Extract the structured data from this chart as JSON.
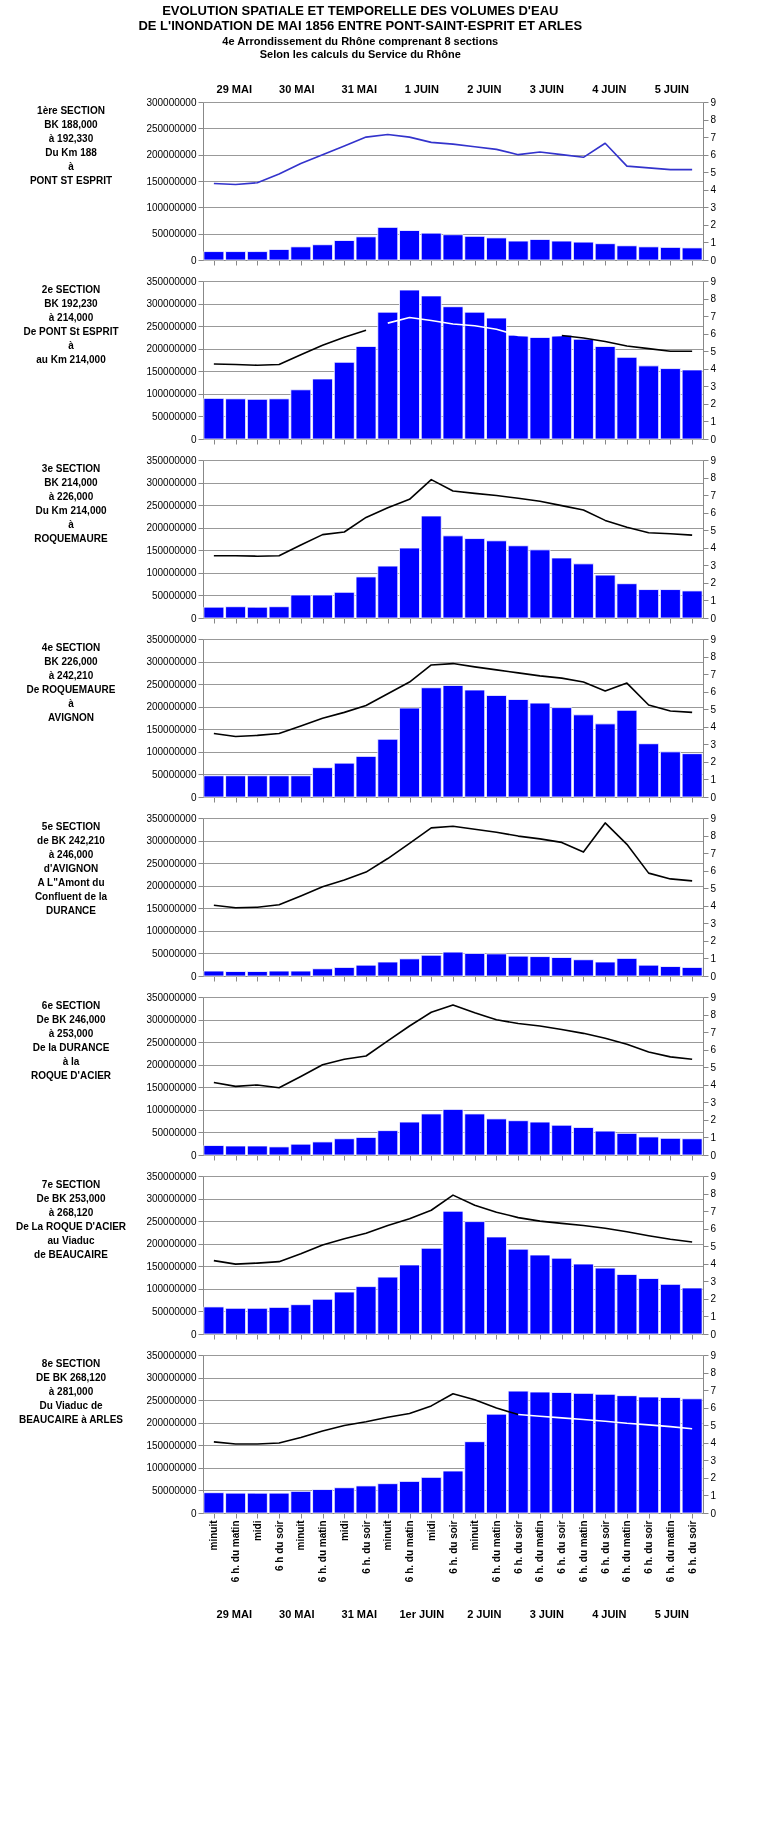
{
  "chart_data": [
    {
      "type": "bar",
      "title": "EVOLUTION SPATIALE ET TEMPORELLE DES VOLUMES D'EAU\nDE L'INONDATION DE MAI 1856 ENTRE PONT-SAINT-ESPRIT ET ARLES",
      "subtitle": "4e Arrondissement du Rhône comprenant 8 sections\nSelon les calculs du Service du Rhône",
      "ylabel": "1ère SECTION\n\nBK 188,000\nà 192,330\n\nDu Km 188\nà\nPONT ST ESPRIT",
      "annotations": [
        "29 MAI",
        "30 MAI",
        "31 MAI",
        "1 JUIN",
        "2 JUIN",
        "3 JUIN",
        "4 JUIN",
        "5 JUIN"
      ],
      "categories": [
        null,
        null,
        null,
        null,
        null,
        null,
        null,
        null,
        null,
        null,
        null,
        null,
        null,
        null,
        null,
        null,
        null,
        null,
        null,
        null,
        null,
        null,
        null
      ],
      "series": [
        {
          "type": "bar",
          "color": "#0000ff",
          "values": [
            16000000,
            16000000,
            16000000,
            20000000,
            25000000,
            29000000,
            37000000,
            44000000,
            62000000,
            56000000,
            51000000,
            48000000,
            45000000,
            42000000,
            36000000,
            39000000,
            36000000,
            34000000,
            31000000,
            27000000,
            25000000,
            24000000,
            23000000
          ]
        },
        {
          "type": "line",
          "axis": "y2",
          "color": "#3333cc",
          "values": [
            4.36,
            4.3,
            4.4,
            4.9,
            5.5,
            6.0,
            6.5,
            7.0,
            7.15,
            7.0,
            6.7,
            6.6,
            6.45,
            6.3,
            6.0,
            6.15,
            6.0,
            5.85,
            6.65,
            5.35,
            5.25,
            5.15,
            5.15
          ]
        }
      ],
      "ylim": [
        0,
        300000000
      ],
      "yticks": [
        0,
        50000000,
        100000000,
        150000000,
        200000000,
        250000000,
        300000000
      ],
      "y2lim": [
        0,
        9
      ],
      "y2ticks": [
        0,
        1,
        2,
        3,
        4,
        5,
        6,
        7,
        8,
        9
      ],
      "grid": "y",
      "tick_labels": "y"
    },
    {
      "type": "bar",
      "ylabel": "2e SECTION\nBK 192,230\nà 214,000\n\nDe PONT St ESPRIT\nà\nau Km 214,000",
      "categories": [
        null,
        null,
        null,
        null,
        null,
        null,
        null,
        null,
        null,
        null,
        null,
        null,
        null,
        null,
        null,
        null,
        null,
        null,
        null,
        null,
        null,
        null,
        null
      ],
      "series": [
        {
          "type": "bar",
          "color": "#0000ff",
          "values": [
            90000000,
            89000000,
            88000000,
            89000000,
            109000000,
            133000000,
            170000000,
            205000000,
            281000000,
            330000000,
            317000000,
            293000000,
            281000000,
            268000000,
            230000000,
            225000000,
            230000000,
            221000000,
            205000000,
            181000000,
            162000000,
            156000000,
            153000000
          ]
        },
        {
          "type": "line",
          "axis": "y2",
          "color": "#000000",
          "values": [
            4.27,
            4.24,
            4.2,
            4.24,
            4.8,
            5.34,
            5.8,
            6.2,
            null,
            null,
            null,
            null,
            null,
            null,
            null,
            null,
            5.9,
            5.75,
            5.55,
            5.3,
            5.15,
            5.0,
            5.0
          ]
        },
        {
          "type": "line",
          "axis": "y2",
          "color": "#ffffff",
          "values": [
            null,
            null,
            null,
            null,
            null,
            null,
            null,
            null,
            6.6,
            6.92,
            6.75,
            6.55,
            6.45,
            6.25,
            5.9,
            5.85,
            5.9,
            null,
            null,
            null,
            null,
            null,
            null
          ]
        }
      ],
      "ylim": [
        0,
        350000000
      ],
      "yticks": [
        0,
        50000000,
        100000000,
        150000000,
        200000000,
        250000000,
        300000000,
        350000000
      ],
      "y2lim": [
        0,
        9
      ],
      "y2ticks": [
        0,
        1,
        2,
        3,
        4,
        5,
        6,
        7,
        8,
        9
      ],
      "grid": "y",
      "tick_labels": "y"
    },
    {
      "type": "bar",
      "ylabel": "3e SECTION\nBK 214,000\nà 226,000\n\nDu Km 214,000\nà\nROQUEMAURE",
      "categories": [
        null,
        null,
        null,
        null,
        null,
        null,
        null,
        null,
        null,
        null,
        null,
        null,
        null,
        null,
        null,
        null,
        null,
        null,
        null,
        null,
        null,
        null,
        null
      ],
      "series": [
        {
          "type": "bar",
          "color": "#0000ff",
          "values": [
            24000000,
            25000000,
            24000000,
            25000000,
            51000000,
            51000000,
            57000000,
            91000000,
            115000000,
            155000000,
            226000000,
            182000000,
            176000000,
            171000000,
            160000000,
            151000000,
            133000000,
            120000000,
            95000000,
            76000000,
            63000000,
            63000000,
            60000000
          ]
        },
        {
          "type": "line",
          "axis": "y2",
          "color": "#000000",
          "values": [
            3.55,
            3.55,
            3.52,
            3.55,
            4.16,
            4.75,
            4.9,
            5.73,
            6.28,
            6.76,
            7.88,
            7.23,
            7.1,
            6.98,
            6.82,
            6.65,
            6.4,
            6.15,
            5.56,
            5.17,
            4.86,
            4.8,
            4.72
          ]
        }
      ],
      "ylim": [
        0,
        350000000
      ],
      "yticks": [
        0,
        50000000,
        100000000,
        150000000,
        200000000,
        250000000,
        300000000,
        350000000
      ],
      "y2lim": [
        0,
        9
      ],
      "y2ticks": [
        0,
        1,
        2,
        3,
        4,
        5,
        6,
        7,
        8,
        9
      ],
      "grid": "y",
      "tick_labels": "y"
    },
    {
      "type": "bar",
      "ylabel": "4e SECTION\nBK 226,000\nà  242,210\n\nDe ROQUEMAURE\nà\nAVIGNON",
      "categories": [
        null,
        null,
        null,
        null,
        null,
        null,
        null,
        null,
        null,
        null,
        null,
        null,
        null,
        null,
        null,
        null,
        null,
        null,
        null,
        null,
        null,
        null,
        null
      ],
      "series": [
        {
          "type": "bar",
          "color": "#0000ff",
          "values": [
            47000000,
            47000000,
            47000000,
            47000000,
            47000000,
            65000000,
            75000000,
            90000000,
            128000000,
            197000000,
            242000000,
            247000000,
            237000000,
            225000000,
            216000000,
            208000000,
            198000000,
            182000000,
            162000000,
            192000000,
            118000000,
            100000000,
            96000000
          ]
        },
        {
          "type": "line",
          "axis": "y2",
          "color": "#000000",
          "values": [
            3.62,
            3.45,
            3.51,
            3.62,
            4.04,
            4.48,
            4.82,
            5.21,
            5.88,
            6.55,
            7.52,
            7.6,
            7.41,
            7.24,
            7.07,
            6.9,
            6.77,
            6.55,
            6.04,
            6.49,
            5.24,
            4.9,
            4.82
          ]
        }
      ],
      "ylim": [
        0,
        350000000
      ],
      "yticks": [
        0,
        50000000,
        100000000,
        150000000,
        200000000,
        250000000,
        300000000,
        350000000
      ],
      "y2lim": [
        0,
        9
      ],
      "y2ticks": [
        0,
        1,
        2,
        3,
        4,
        5,
        6,
        7,
        8,
        9
      ],
      "grid": "y",
      "tick_labels": "y"
    },
    {
      "type": "bar",
      "ylabel": "5e SECTION\nde BK 242,210\nà 246,000\n\nd'AVIGNON\nA L\"Amont du\nConfluent de la\nDURANCE",
      "categories": [
        null,
        null,
        null,
        null,
        null,
        null,
        null,
        null,
        null,
        null,
        null,
        null,
        null,
        null,
        null,
        null,
        null,
        null,
        null,
        null,
        null,
        null,
        null
      ],
      "series": [
        {
          "type": "bar",
          "color": "#0000ff",
          "values": [
            11000000,
            10000000,
            10000000,
            11000000,
            11000000,
            16000000,
            19000000,
            24000000,
            31000000,
            38000000,
            46000000,
            53000000,
            50000000,
            49000000,
            44000000,
            43000000,
            41000000,
            36000000,
            31000000,
            39000000,
            24000000,
            21000000,
            19000000
          ]
        },
        {
          "type": "line",
          "axis": "y2",
          "color": "#000000",
          "values": [
            4.03,
            3.89,
            3.92,
            4.06,
            4.56,
            5.08,
            5.47,
            5.92,
            6.69,
            7.56,
            8.44,
            8.53,
            8.36,
            8.19,
            7.97,
            7.81,
            7.61,
            7.06,
            8.72,
            7.5,
            5.86,
            5.53,
            5.42
          ]
        }
      ],
      "ylim": [
        0,
        350000000
      ],
      "yticks": [
        0,
        50000000,
        100000000,
        150000000,
        200000000,
        250000000,
        300000000,
        350000000
      ],
      "y2lim": [
        0,
        9
      ],
      "y2ticks": [
        0,
        1,
        2,
        3,
        4,
        5,
        6,
        7,
        8,
        9
      ],
      "grid": "y",
      "tick_labels": "y"
    },
    {
      "type": "bar",
      "ylabel": "6e SECTION\nDe BK 246,000\nà 253,000\nDe la DURANCE\nà la\nROQUE D'ACIER",
      "categories": [
        null,
        null,
        null,
        null,
        null,
        null,
        null,
        null,
        null,
        null,
        null,
        null,
        null,
        null,
        null,
        null,
        null,
        null,
        null,
        null,
        null,
        null,
        null
      ],
      "series": [
        {
          "type": "bar",
          "color": "#0000ff",
          "values": [
            21000000,
            20000000,
            20000000,
            18000000,
            24000000,
            29000000,
            36000000,
            39000000,
            54000000,
            73000000,
            91000000,
            101000000,
            91000000,
            80000000,
            76000000,
            73000000,
            66000000,
            61000000,
            53000000,
            48000000,
            40000000,
            37000000,
            36000000
          ]
        },
        {
          "type": "line",
          "axis": "y2",
          "color": "#000000",
          "values": [
            4.13,
            3.91,
            3.99,
            3.83,
            4.47,
            5.14,
            5.45,
            5.64,
            6.5,
            7.35,
            8.13,
            8.55,
            8.1,
            7.7,
            7.49,
            7.35,
            7.15,
            6.93,
            6.65,
            6.31,
            5.87,
            5.59,
            5.45
          ]
        }
      ],
      "ylim": [
        0,
        350000000
      ],
      "yticks": [
        0,
        50000000,
        100000000,
        150000000,
        200000000,
        250000000,
        300000000,
        350000000
      ],
      "y2lim": [
        0,
        9
      ],
      "y2ticks": [
        0,
        1,
        2,
        3,
        4,
        5,
        6,
        7,
        8,
        9
      ],
      "grid": "y",
      "tick_labels": "y"
    },
    {
      "type": "bar",
      "ylabel": "7e SECTION\nDe BK 253,000\nà 268,120\nDe La ROQUE D'ACIER\nau Viaduc\nde BEAUCAIRE",
      "categories": [
        null,
        null,
        null,
        null,
        null,
        null,
        null,
        null,
        null,
        null,
        null,
        null,
        null,
        null,
        null,
        null,
        null,
        null,
        null,
        null,
        null,
        null,
        null
      ],
      "series": [
        {
          "type": "bar",
          "color": "#0000ff",
          "values": [
            60000000,
            57000000,
            57000000,
            59000000,
            65000000,
            77000000,
            93000000,
            105000000,
            126000000,
            153000000,
            190000000,
            272000000,
            249000000,
            215000000,
            188000000,
            175000000,
            168000000,
            155000000,
            146000000,
            132000000,
            123000000,
            110000000,
            102000000
          ]
        },
        {
          "type": "line",
          "axis": "y2",
          "color": "#000000",
          "values": [
            4.18,
            3.98,
            4.04,
            4.12,
            4.57,
            5.07,
            5.43,
            5.74,
            6.18,
            6.57,
            7.05,
            7.91,
            7.33,
            6.94,
            6.63,
            6.43,
            6.3,
            6.18,
            6.02,
            5.82,
            5.6,
            5.4,
            5.24
          ]
        }
      ],
      "ylim": [
        0,
        350000000
      ],
      "yticks": [
        0,
        50000000,
        100000000,
        150000000,
        200000000,
        250000000,
        300000000,
        350000000
      ],
      "y2lim": [
        0,
        9
      ],
      "y2ticks": [
        0,
        1,
        2,
        3,
        4,
        5,
        6,
        7,
        8,
        9
      ],
      "grid": "y",
      "tick_labels": "y"
    },
    {
      "type": "bar",
      "ylabel": "8e SECTION\nDE BK 268,120\nà 281,000\nDu Viaduc de\nBEAUCAIRE à ARLES",
      "categories": [
        "minuit",
        "6 h. du matin",
        "midi",
        "6 h du soir",
        "minuit",
        "6 h. du matin",
        "midi",
        "6 h. du soir",
        "minuit",
        "6 h. du matin",
        "midi",
        "6 h. du soir",
        "minuit",
        "6 h. du matin",
        "6 h. du soir",
        "6 h. du matin",
        "6 h. du soir",
        "6 h. du matin",
        "6 h. du soir",
        "6 h. du matin",
        "6 h. du soir",
        "6 h. du matin",
        "6 h. du soir"
      ],
      "series": [
        {
          "type": "bar",
          "color": "#0000ff",
          "values": [
            45000000,
            44000000,
            44000000,
            44000000,
            48000000,
            52000000,
            56000000,
            60000000,
            65000000,
            70000000,
            79000000,
            93000000,
            158000000,
            219000000,
            270000000,
            268000000,
            267000000,
            265000000,
            263000000,
            260000000,
            257000000,
            256000000,
            253000000
          ]
        },
        {
          "type": "line",
          "axis": "y2",
          "color": "#000000",
          "values": [
            4.05,
            3.93,
            3.93,
            3.99,
            4.3,
            4.67,
            4.98,
            5.2,
            5.45,
            5.67,
            6.1,
            6.79,
            6.45,
            5.98,
            5.61,
            null,
            null,
            null,
            null,
            null,
            null,
            null,
            null
          ]
        },
        {
          "type": "line",
          "axis": "y2",
          "color": "#ffffff",
          "values": [
            null,
            null,
            null,
            null,
            null,
            null,
            null,
            null,
            null,
            null,
            null,
            null,
            null,
            null,
            5.61,
            5.51,
            5.42,
            5.33,
            5.23,
            5.11,
            5.02,
            4.92,
            4.8
          ]
        }
      ],
      "ylim": [
        0,
        350000000
      ],
      "yticks": [
        0,
        50000000,
        100000000,
        150000000,
        200000000,
        250000000,
        300000000,
        350000000
      ],
      "y2lim": [
        0,
        9
      ],
      "y2ticks": [
        0,
        1,
        2,
        3,
        4,
        5,
        6,
        7,
        8,
        9
      ],
      "grid": "y",
      "annotations": [
        "29 MAI",
        "30 MAI",
        "31 MAI",
        "1er JUIN",
        "2 JUIN",
        "3 JUIN",
        "4 JUIN",
        "5 JUIN"
      ]
    }
  ]
}
